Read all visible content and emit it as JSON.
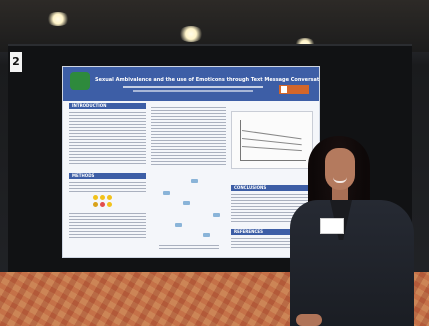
{
  "scene": {
    "description_free": true,
    "wall_marker": "2"
  },
  "poster": {
    "title": "Sexual Ambivalence and the use of Emoticons through Text Message Conversations",
    "sections": {
      "introduction": "INTRODUCTION",
      "methods": "METHODS",
      "conclusion": "CONCLUSIONS",
      "references": "REFERENCES"
    }
  },
  "colors": {
    "poster_header": "#3d5ea6",
    "poster_bg": "#f4f6fa",
    "board": "#111214",
    "carpet": "#b86a45",
    "jacket": "#262a33",
    "hair": "#0d0808"
  }
}
